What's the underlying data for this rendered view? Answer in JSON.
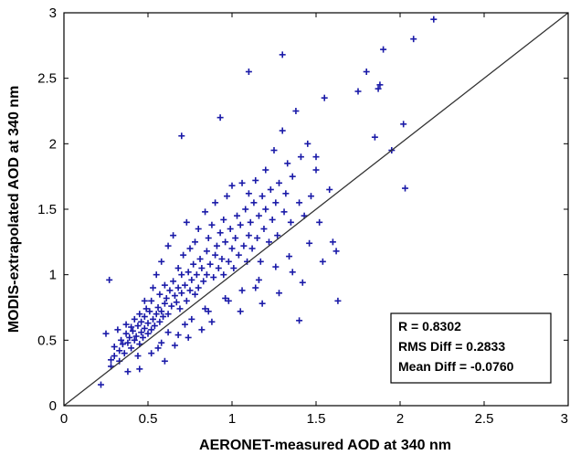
{
  "chart_data": {
    "type": "scatter",
    "xlabel": "AERONET-measured AOD at 340 nm",
    "ylabel": "MODIS-extrapolated AOD at 340 nm",
    "xlim": [
      0,
      3
    ],
    "ylim": [
      0,
      3
    ],
    "xticks": [
      "0",
      "0.5",
      "1",
      "1.5",
      "2",
      "2.5",
      "3"
    ],
    "yticks": [
      "0",
      "0.5",
      "1",
      "1.5",
      "2",
      "2.5",
      "3"
    ],
    "reference_line": "1:1",
    "marker_color": "#1a1aa8",
    "stats": [
      "R = 0.8302",
      "RMS Diff = 0.2833",
      "Mean Diff = -0.0760"
    ],
    "series": [
      {
        "x": [
          0.22,
          0.25,
          0.27,
          0.28,
          0.3,
          0.3,
          0.32,
          0.33,
          0.33,
          0.34,
          0.35,
          0.36,
          0.37,
          0.37,
          0.38,
          0.39,
          0.4,
          0.4,
          0.41,
          0.42,
          0.42,
          0.43,
          0.44,
          0.45,
          0.45,
          0.46,
          0.46,
          0.47,
          0.48,
          0.48,
          0.49,
          0.5,
          0.5,
          0.51,
          0.52,
          0.52,
          0.53,
          0.53,
          0.54,
          0.55,
          0.55,
          0.56,
          0.57,
          0.57,
          0.58,
          0.58,
          0.59,
          0.6,
          0.6,
          0.61,
          0.62,
          0.62,
          0.63,
          0.64,
          0.65,
          0.65,
          0.66,
          0.67,
          0.68,
          0.68,
          0.69,
          0.7,
          0.7,
          0.71,
          0.72,
          0.73,
          0.73,
          0.74,
          0.75,
          0.75,
          0.76,
          0.77,
          0.78,
          0.78,
          0.79,
          0.8,
          0.8,
          0.81,
          0.82,
          0.83,
          0.84,
          0.85,
          0.85,
          0.86,
          0.87,
          0.88,
          0.89,
          0.9,
          0.9,
          0.91,
          0.92,
          0.93,
          0.94,
          0.95,
          0.95,
          0.96,
          0.97,
          0.98,
          0.99,
          1.0,
          1.0,
          1.01,
          1.02,
          1.03,
          1.04,
          1.05,
          1.06,
          1.07,
          1.08,
          1.09,
          1.1,
          1.1,
          1.11,
          1.12,
          1.13,
          1.14,
          1.15,
          1.16,
          1.17,
          1.18,
          1.19,
          1.2,
          1.2,
          1.22,
          1.23,
          1.24,
          1.25,
          1.26,
          1.27,
          1.28,
          1.3,
          1.31,
          1.32,
          1.33,
          1.35,
          1.36,
          1.38,
          1.4,
          1.41,
          1.43,
          1.45,
          1.47,
          1.5,
          1.52,
          1.55,
          1.58,
          1.6,
          1.63,
          1.3,
          1.75,
          1.8,
          1.85,
          1.88,
          1.9,
          1.95,
          2.02,
          2.08,
          2.2,
          2.03,
          1.1,
          0.7,
          0.93,
          1.87,
          1.4,
          1.5,
          0.45,
          0.6,
          0.38,
          0.52,
          0.66,
          0.74,
          0.82,
          0.88,
          1.05,
          1.18,
          1.28,
          1.42,
          0.28,
          0.44,
          0.56,
          0.48,
          0.62,
          0.72,
          0.84,
          0.96,
          1.14,
          1.36,
          1.54,
          1.62,
          0.58,
          0.68,
          0.76,
          0.86,
          0.98,
          1.06,
          1.16,
          1.26,
          1.34,
          1.46
        ],
        "y": [
          0.16,
          0.55,
          0.96,
          0.3,
          0.38,
          0.45,
          0.58,
          0.42,
          0.34,
          0.5,
          0.47,
          0.4,
          0.55,
          0.62,
          0.48,
          0.52,
          0.44,
          0.6,
          0.57,
          0.5,
          0.66,
          0.53,
          0.61,
          0.47,
          0.7,
          0.56,
          0.64,
          0.52,
          0.68,
          0.59,
          0.74,
          0.55,
          0.63,
          0.72,
          0.58,
          0.8,
          0.66,
          0.9,
          0.61,
          0.7,
          1.0,
          0.75,
          0.64,
          0.85,
          0.72,
          1.1,
          0.68,
          0.78,
          0.92,
          0.82,
          0.7,
          1.22,
          0.88,
          0.76,
          0.95,
          1.3,
          0.84,
          0.79,
          1.05,
          0.9,
          0.74,
          1.0,
          0.86,
          1.15,
          0.92,
          0.8,
          1.4,
          1.02,
          0.88,
          1.2,
          0.96,
          1.08,
          0.85,
          1.25,
          1.0,
          0.9,
          1.35,
          1.12,
          1.05,
          0.95,
          1.48,
          1.18,
          1.0,
          1.28,
          1.08,
          1.38,
          0.98,
          1.15,
          1.55,
          1.22,
          1.05,
          1.32,
          1.12,
          1.42,
          1.0,
          1.25,
          1.6,
          1.1,
          1.35,
          1.2,
          1.68,
          1.05,
          1.28,
          1.45,
          1.15,
          1.38,
          1.7,
          1.22,
          1.5,
          1.1,
          1.3,
          1.62,
          1.4,
          1.2,
          1.55,
          1.72,
          1.28,
          1.45,
          1.1,
          1.6,
          1.35,
          1.5,
          1.8,
          1.25,
          1.65,
          1.42,
          1.95,
          1.55,
          1.3,
          1.7,
          2.1,
          1.48,
          1.62,
          1.85,
          1.4,
          1.75,
          2.25,
          1.55,
          1.9,
          1.45,
          2.0,
          1.6,
          1.8,
          1.4,
          2.35,
          1.65,
          1.25,
          0.8,
          2.68,
          2.4,
          2.55,
          2.05,
          2.45,
          2.72,
          1.95,
          2.15,
          2.8,
          2.95,
          1.66,
          2.55,
          2.06,
          2.2,
          2.42,
          0.65,
          1.9,
          0.28,
          0.34,
          0.26,
          0.4,
          0.46,
          0.52,
          0.58,
          0.64,
          0.72,
          0.78,
          0.86,
          0.94,
          0.35,
          0.38,
          0.44,
          0.8,
          0.56,
          0.62,
          0.74,
          0.82,
          0.9,
          1.02,
          1.1,
          1.18,
          0.48,
          0.54,
          0.66,
          0.72,
          0.8,
          0.88,
          0.96,
          1.06,
          1.14,
          1.24
        ]
      }
    ]
  }
}
